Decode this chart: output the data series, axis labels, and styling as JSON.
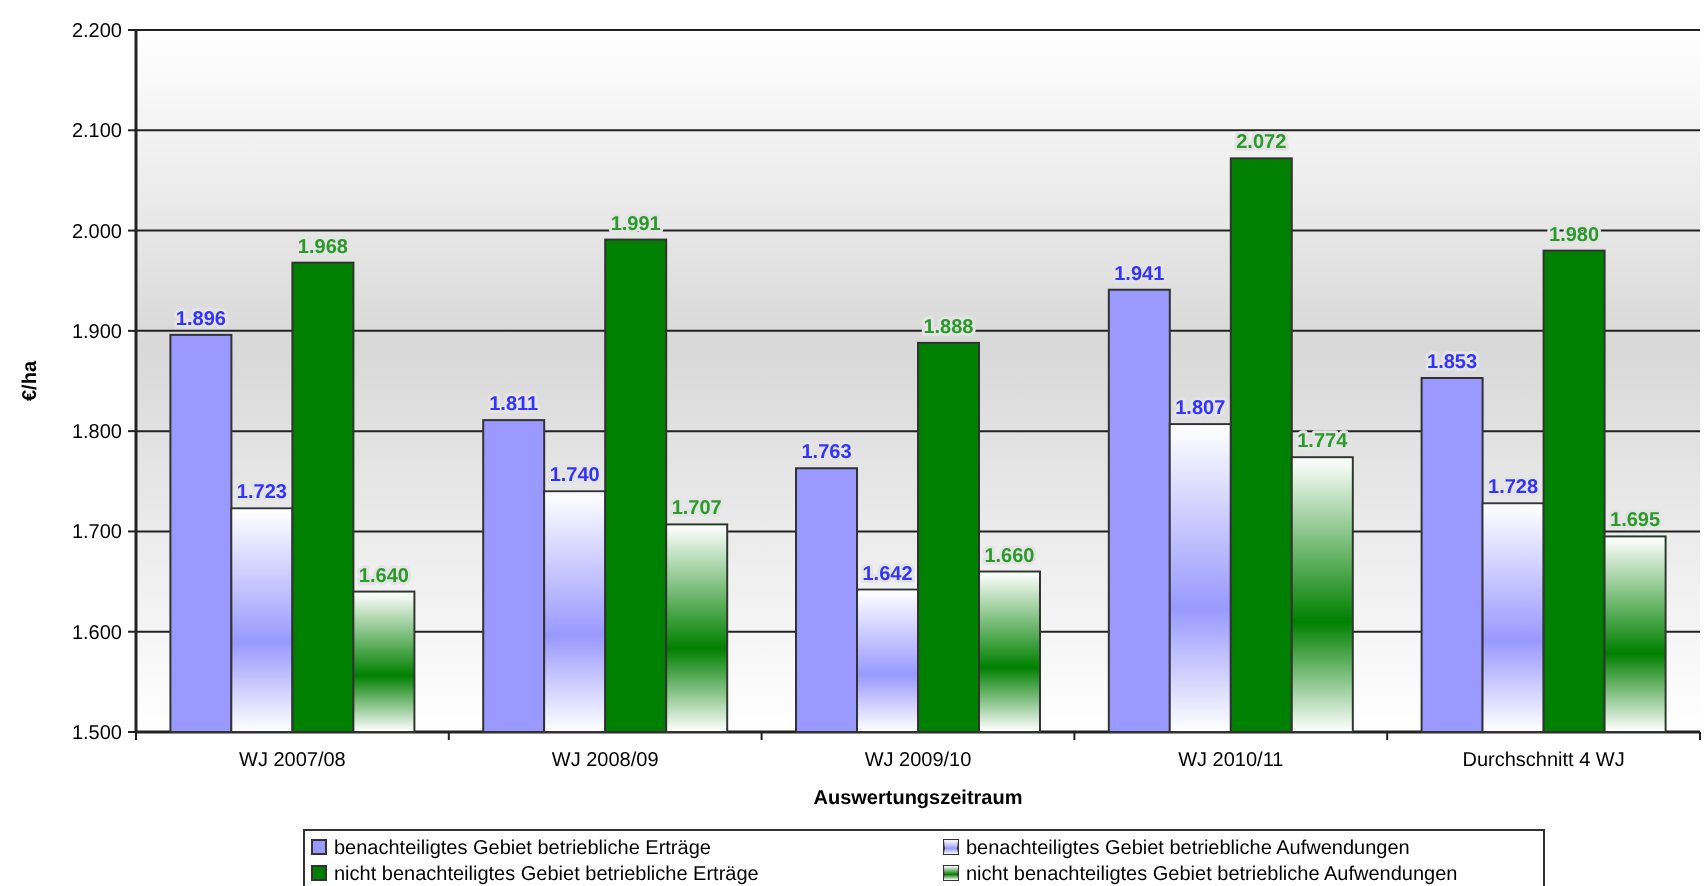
{
  "chart_data": {
    "type": "bar",
    "xlabel": "Auswertungszeitraum",
    "ylabel": "€/ha",
    "categories": [
      "WJ 2007/08",
      "WJ 2008/09",
      "WJ 2009/10",
      "WJ 2010/11",
      "Durchschnitt 4 WJ"
    ],
    "series": [
      {
        "name": "benachteiligtes Gebiet betriebliche Erträge",
        "color": "#9999ff",
        "values": [
          1896,
          1811,
          1763,
          1941,
          1853
        ],
        "value_labels": [
          "1.896",
          "1.811",
          "1.763",
          "1.941",
          "1.853"
        ]
      },
      {
        "name": "benachteiligtes Gebiet betriebliche Aufwendungen",
        "color": "#9999ff",
        "values": [
          1723,
          1740,
          1642,
          1807,
          1728
        ],
        "value_labels": [
          "1.723",
          "1.740",
          "1.642",
          "1.807",
          "1.728"
        ]
      },
      {
        "name": "nicht benachteiligtes Gebiet betriebliche Erträge",
        "color": "#008000",
        "values": [
          1968,
          1991,
          1888,
          2072,
          1980
        ],
        "value_labels": [
          "1.968",
          "1.991",
          "1.888",
          "2.072",
          "1.980"
        ]
      },
      {
        "name": "nicht benachteiligtes Gebiet betriebliche Aufwendungen",
        "color": "#008000",
        "values": [
          1640,
          1707,
          1660,
          1774,
          1695
        ],
        "value_labels": [
          "1.640",
          "1.707",
          "1.660",
          "1.774",
          "1.695"
        ]
      }
    ],
    "ylim": [
      1500,
      2200
    ],
    "yticks": [
      {
        "value": 1500,
        "label": "1.500"
      },
      {
        "value": 1600,
        "label": "1.600"
      },
      {
        "value": 1700,
        "label": "1.700"
      },
      {
        "value": 1800,
        "label": "1.800"
      },
      {
        "value": 1900,
        "label": "1.900"
      },
      {
        "value": 2000,
        "label": "2.000"
      },
      {
        "value": 2100,
        "label": "2.100"
      },
      {
        "value": 2200,
        "label": "2.200"
      }
    ],
    "grid": "y",
    "legend": "bottom"
  }
}
